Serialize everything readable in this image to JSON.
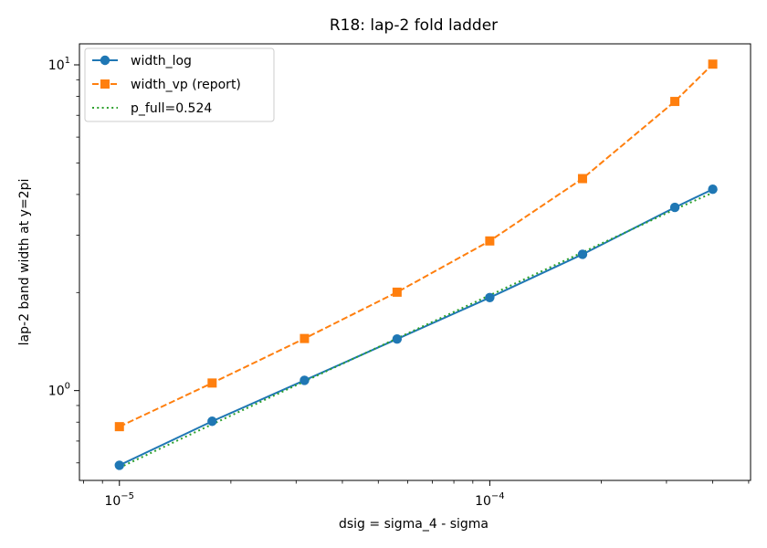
{
  "chart_data": {
    "type": "line",
    "title": "R18: lap-2 fold ladder",
    "xlabel": "dsig = sigma_4 - sigma",
    "ylabel": "lap-2 band width at y=2pi",
    "xscale": "log",
    "yscale": "log",
    "xlim": [
      7.8e-06,
      0.000506
    ],
    "ylim": [
      0.53,
      11.6
    ],
    "x_major_ticks": [
      {
        "value": 1e-05,
        "base": "10",
        "exp": "−5"
      },
      {
        "value": 0.0001,
        "base": "10",
        "exp": "−4"
      }
    ],
    "y_major_ticks": [
      {
        "value": 1,
        "base": "10",
        "exp": "0"
      },
      {
        "value": 10,
        "base": "10",
        "exp": "1"
      }
    ],
    "grid": false,
    "legend_position": "upper-left",
    "x": [
      1e-05,
      1.78e-05,
      3.16e-05,
      5.62e-05,
      0.0001,
      0.000178,
      0.000316,
      0.0004
    ],
    "series": [
      {
        "name": "width_log",
        "color": "#1f77b4",
        "linestyle": "solid",
        "marker": "circle",
        "values": [
          0.59,
          0.805,
          1.075,
          1.44,
          1.93,
          2.62,
          3.65,
          4.15
        ]
      },
      {
        "name": "width_vp (report)",
        "color": "#ff7f0e",
        "linestyle": "dashed",
        "marker": "square",
        "values": [
          0.775,
          1.055,
          1.445,
          2.005,
          2.88,
          4.475,
          7.72,
          10.05
        ]
      },
      {
        "name": "p_full=0.524",
        "color": "#2ca02c",
        "linestyle": "dotted",
        "marker": "none",
        "values": [
          0.58,
          0.788,
          1.067,
          1.447,
          1.962,
          2.657,
          3.6,
          4.05
        ]
      }
    ]
  }
}
